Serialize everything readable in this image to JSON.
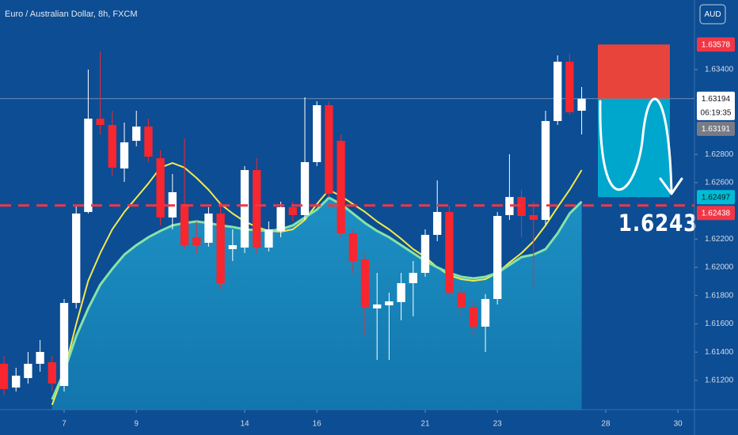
{
  "chart_data": {
    "type": "candlestick",
    "title": "Euro / Australian Dollar, 8h, FXCM",
    "currency_button": "AUD",
    "x": [
      0,
      1,
      2,
      3,
      4,
      5,
      6,
      7,
      8,
      9,
      10,
      11,
      12,
      13,
      14,
      15,
      16,
      17,
      18,
      19,
      20,
      21,
      22,
      23,
      24,
      25,
      26,
      27,
      28,
      29,
      30,
      31,
      32,
      33,
      34,
      35,
      36,
      37,
      38,
      39,
      40,
      41,
      42,
      43,
      44,
      45,
      46,
      47,
      48
    ],
    "open": [
      1.61317,
      1.61149,
      1.61216,
      1.61317,
      1.61328,
      1.6116,
      1.61748,
      1.62392,
      1.63053,
      1.63008,
      1.627,
      1.62896,
      1.62997,
      1.62773,
      1.62353,
      1.62448,
      1.62213,
      1.62174,
      1.62381,
      1.62129,
      1.6214,
      1.62689,
      1.6214,
      1.62258,
      1.62426,
      1.6237,
      1.62745,
      1.63148,
      1.62896,
      1.62241,
      1.62056,
      1.61709,
      1.61731,
      1.61754,
      1.61888,
      1.61961,
      1.6223,
      1.62392,
      1.61821,
      1.6172,
      1.6158,
      1.61776,
      1.6237,
      1.62498,
      1.6237,
      1.62336,
      1.63036,
      1.63456,
      1.63109
    ],
    "high": [
      1.61373,
      1.61289,
      1.61401,
      1.61485,
      1.61373,
      1.61776,
      1.62437,
      1.634,
      1.63529,
      1.63109,
      1.63025,
      1.63109,
      1.63053,
      1.62829,
      1.62661,
      1.62913,
      1.62325,
      1.62426,
      1.62465,
      1.62269,
      1.62717,
      1.62773,
      1.62325,
      1.62465,
      1.62465,
      1.63204,
      1.63176,
      1.63176,
      1.62941,
      1.62269,
      1.62101,
      1.61961,
      1.61821,
      1.61961,
      1.62045,
      1.62269,
      1.62616,
      1.62437,
      1.61866,
      1.61765,
      1.6181,
      1.62392,
      1.62801,
      1.62549,
      1.62465,
      1.63109,
      1.63501,
      1.63512,
      1.63277
    ],
    "low": [
      1.61093,
      1.61121,
      1.61177,
      1.61261,
      1.61121,
      1.61121,
      1.61709,
      1.62381,
      1.62941,
      1.6265,
      1.62605,
      1.62857,
      1.62745,
      1.62297,
      1.62269,
      1.62129,
      1.62101,
      1.62146,
      1.61849,
      1.62045,
      1.62101,
      1.62101,
      1.62112,
      1.62213,
      1.62325,
      1.62336,
      1.62717,
      1.62493,
      1.62213,
      1.61961,
      1.61513,
      1.61345,
      1.61345,
      1.61625,
      1.61653,
      1.61933,
      1.62185,
      1.61776,
      1.61653,
      1.61513,
      1.61401,
      1.61737,
      1.62336,
      1.62213,
      1.61849,
      1.62297,
      1.63008,
      1.63081,
      1.62941
    ],
    "close": [
      1.61138,
      1.61233,
      1.61317,
      1.61401,
      1.61177,
      1.61748,
      1.62381,
      1.63053,
      1.63008,
      1.62706,
      1.62885,
      1.62997,
      1.62784,
      1.62353,
      1.62532,
      1.62157,
      1.62157,
      1.62381,
      1.61888,
      1.62157,
      1.62689,
      1.6214,
      1.62269,
      1.62426,
      1.6237,
      1.62745,
      1.63148,
      1.62521,
      1.62241,
      1.62045,
      1.6172,
      1.61737,
      1.61759,
      1.61888,
      1.61961,
      1.6223,
      1.62392,
      1.61821,
      1.6172,
      1.6158,
      1.61776,
      1.62364,
      1.62498,
      1.62364,
      1.62336,
      1.63036,
      1.63456,
      1.63098,
      1.63194
    ],
    "up_color": "#ffffff",
    "down_color": "#f7262f",
    "overlays": [
      {
        "color": "#f5e94a",
        "values": [
          null,
          null,
          null,
          null,
          1.61026,
          1.61261,
          1.61597,
          1.61905,
          1.62101,
          1.62269,
          1.62392,
          1.62493,
          1.62594,
          1.62706,
          1.62739,
          1.62706,
          1.62633,
          1.62549,
          1.62448,
          1.62381,
          1.62325,
          1.62286,
          1.62258,
          1.62252,
          1.62269,
          1.62336,
          1.62448,
          1.62549,
          1.62504,
          1.62448,
          1.62392,
          1.62325,
          1.62269,
          1.62202,
          1.62129,
          1.62073,
          1.62,
          1.61944,
          1.61916,
          1.61905,
          1.61916,
          1.61961,
          1.62034,
          1.62101,
          1.62185,
          1.62297,
          1.62426,
          1.62549,
          1.62689
        ]
      },
      {
        "color": "#86e3a6",
        "area_color": "#1c8fc2",
        "values": [
          null,
          null,
          null,
          null,
          1.61065,
          1.61261,
          1.61513,
          1.61709,
          1.61877,
          1.61989,
          1.6209,
          1.62157,
          1.62213,
          1.62258,
          1.62297,
          1.62314,
          1.62325,
          1.62314,
          1.62297,
          1.62286,
          1.62269,
          1.62263,
          1.62258,
          1.62269,
          1.62297,
          1.62353,
          1.62409,
          1.62493,
          1.62448,
          1.62381,
          1.62314,
          1.62258,
          1.62213,
          1.62157,
          1.62101,
          1.62045,
          1.62,
          1.61961,
          1.61933,
          1.61922,
          1.61933,
          1.61961,
          1.62017,
          1.62073,
          1.6209,
          1.62129,
          1.62241,
          1.62381,
          1.62465
        ]
      }
    ],
    "xlim": [
      -0.33,
      57.37
    ],
    "xticks": [
      {
        "value": 5,
        "label": "7"
      },
      {
        "value": 11,
        "label": "9"
      },
      {
        "value": 20,
        "label": "14"
      },
      {
        "value": 26,
        "label": "16"
      },
      {
        "value": 35,
        "label": "21"
      },
      {
        "value": 41,
        "label": "23"
      },
      {
        "value": 50,
        "label": "28"
      },
      {
        "value": 56,
        "label": "30"
      }
    ],
    "ylim": [
      1.60992,
      1.63893
    ],
    "yticks": [
      {
        "value": 1.634,
        "label": "1.63400"
      },
      {
        "value": 1.628,
        "label": "1.62800"
      },
      {
        "value": 1.626,
        "label": "1.62600"
      },
      {
        "value": 1.622,
        "label": "1.62200"
      },
      {
        "value": 1.62,
        "label": "1.62000"
      },
      {
        "value": 1.618,
        "label": "1.61800"
      },
      {
        "value": 1.616,
        "label": "1.61600"
      },
      {
        "value": 1.614,
        "label": "1.61400"
      },
      {
        "value": 1.612,
        "label": "1.61200"
      }
    ],
    "price_tags": [
      {
        "value": 1.63578,
        "color": "#f23645",
        "text_color": "#ffffff"
      },
      {
        "value": 1.63194,
        "color": "#ffffff",
        "text_color": "#131722",
        "countdown": "06:19:35"
      },
      {
        "value": 1.63191,
        "color": "#787b86",
        "text_color": "#ffffff"
      },
      {
        "value": 1.62497,
        "color": "#00bcd4",
        "text_color": "#131722"
      },
      {
        "value": 1.62438,
        "color": "#f23645",
        "text_color": "#ffffff"
      }
    ],
    "annotation": "1.6243"
  }
}
